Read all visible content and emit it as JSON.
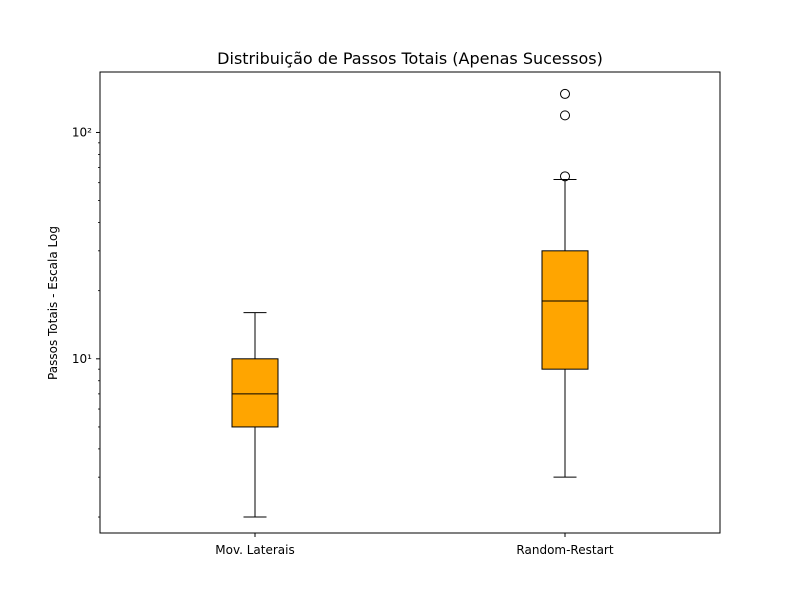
{
  "chart_data": {
    "type": "box",
    "title": "Distribuição de Passos Totais (Apenas Sucessos)",
    "xlabel": "",
    "ylabel": "Passos Totais - Escala Log",
    "yscale": "log",
    "ylim": [
      1.7,
      185
    ],
    "y_major_ticks": [
      10,
      100
    ],
    "y_tick_labels": [
      "10¹",
      "10²"
    ],
    "categories": [
      "Mov. Laterais",
      "Random-Restart"
    ],
    "boxes": [
      {
        "whisker_low": 2,
        "q1": 5,
        "median": 7,
        "q3": 10,
        "whisker_high": 16,
        "outliers": []
      },
      {
        "whisker_low": 3,
        "q1": 9,
        "median": 18,
        "q3": 30,
        "whisker_high": 62,
        "outliers": [
          64,
          119,
          148
        ]
      }
    ],
    "box_color": "#ffa500",
    "edge_color": "#000000",
    "grid": false,
    "legend": "none"
  }
}
